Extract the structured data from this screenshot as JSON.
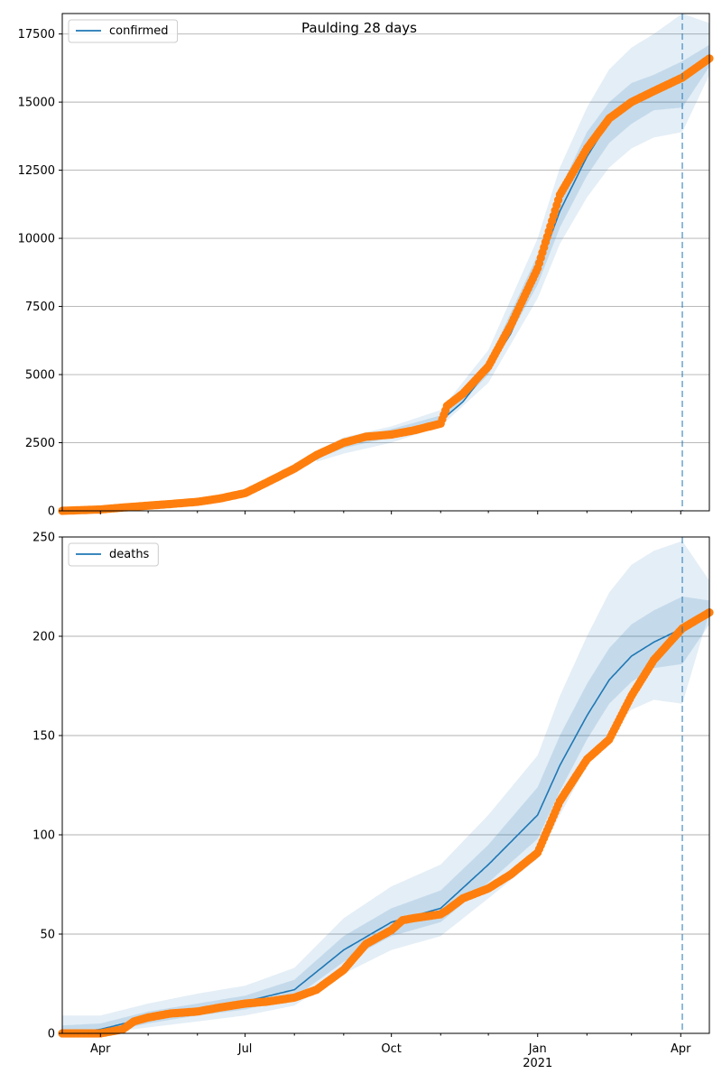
{
  "figure": {
    "title": "Paulding 28 days"
  },
  "chart_data": [
    {
      "type": "line",
      "panel": "top",
      "title": "Paulding 28 days",
      "legend": {
        "label": "confirmed",
        "placement": "top-left"
      },
      "grid": "horizontal",
      "x_axis": {
        "type": "date",
        "range": [
          "2020-03-08",
          "2021-04-19"
        ],
        "tick_labels": []
      },
      "y_axis": {
        "range": [
          0,
          18250
        ],
        "ticks": [
          0,
          2500,
          5000,
          7500,
          10000,
          12500,
          15000,
          17500
        ],
        "tick_labels": [
          "0",
          "2500",
          "5000",
          "7500",
          "10000",
          "12500",
          "15000",
          "17500"
        ]
      },
      "forecast_start": "2021-04-02",
      "model_line": {
        "dates": [
          "2020-03-08",
          "2020-04-01",
          "2020-05-01",
          "2020-06-01",
          "2020-07-01",
          "2020-08-01",
          "2020-09-01",
          "2020-10-01",
          "2020-11-01",
          "2020-11-15",
          "2020-12-01",
          "2020-12-15",
          "2021-01-01",
          "2021-01-15",
          "2021-02-01",
          "2021-02-15",
          "2021-03-01",
          "2021-03-15",
          "2021-04-02"
        ],
        "values": [
          0,
          50,
          150,
          300,
          600,
          1450,
          2450,
          2870,
          3300,
          4000,
          5200,
          6500,
          8800,
          11000,
          13000,
          14300,
          15000,
          15300,
          15800
        ]
      },
      "bands": [
        {
          "label": "outer",
          "dates": [
            "2020-08-15",
            "2020-09-01",
            "2020-10-01",
            "2020-11-01",
            "2020-12-01",
            "2021-01-01",
            "2021-01-15",
            "2021-02-01",
            "2021-02-15",
            "2021-03-01",
            "2021-03-15",
            "2021-04-02",
            "2021-04-19"
          ],
          "lower": [
            1800,
            2100,
            2500,
            3100,
            4700,
            7800,
            9800,
            11500,
            12600,
            13300,
            13700,
            13900,
            16000
          ],
          "upper": [
            2200,
            2700,
            3100,
            3700,
            5900,
            10000,
            12600,
            14800,
            16200,
            17000,
            17500,
            18250,
            17900
          ]
        },
        {
          "label": "inner",
          "dates": [
            "2020-08-15",
            "2020-09-01",
            "2020-10-01",
            "2020-11-01",
            "2020-12-01",
            "2021-01-01",
            "2021-01-15",
            "2021-02-01",
            "2021-02-15",
            "2021-03-01",
            "2021-03-15",
            "2021-04-02",
            "2021-04-19"
          ],
          "lower": [
            1900,
            2300,
            2700,
            3200,
            5000,
            8300,
            10400,
            12300,
            13500,
            14200,
            14700,
            14800,
            16300
          ],
          "upper": [
            2100,
            2600,
            3000,
            3500,
            5500,
            9400,
            11800,
            13900,
            15000,
            15700,
            16000,
            16500,
            17100
          ]
        }
      ],
      "observed": {
        "dates": [
          "2020-03-08",
          "2020-04-01",
          "2020-04-15",
          "2020-05-01",
          "2020-05-15",
          "2020-06-01",
          "2020-06-15",
          "2020-07-01",
          "2020-07-15",
          "2020-08-01",
          "2020-08-15",
          "2020-09-01",
          "2020-09-15",
          "2020-10-01",
          "2020-10-15",
          "2020-11-01",
          "2020-11-05",
          "2020-11-15",
          "2020-12-01",
          "2020-12-15",
          "2021-01-01",
          "2021-01-15",
          "2021-02-01",
          "2021-02-15",
          "2021-03-01",
          "2021-03-15",
          "2021-04-02",
          "2021-04-19"
        ],
        "values": [
          0,
          50,
          120,
          190,
          250,
          330,
          450,
          650,
          1050,
          1550,
          2050,
          2500,
          2720,
          2800,
          2950,
          3200,
          3850,
          4300,
          5300,
          6800,
          8900,
          11600,
          13300,
          14400,
          15000,
          15400,
          15900,
          16600
        ]
      },
      "series_colors": {
        "model": "#1f77b4",
        "observed": "#ff7f0e",
        "band": "#1f77b4"
      }
    },
    {
      "type": "line",
      "panel": "bottom",
      "title": "",
      "legend": {
        "label": "deaths",
        "placement": "top-left"
      },
      "grid": "horizontal",
      "x_axis": {
        "type": "date",
        "range": [
          "2020-03-08",
          "2021-04-19"
        ],
        "tick_labels": [
          "Apr",
          "Jul",
          "Oct",
          "Jan",
          "Apr"
        ],
        "tick_dates": [
          "2020-04-01",
          "2020-07-01",
          "2020-10-01",
          "2021-01-01",
          "2021-04-01"
        ],
        "secondary_label": "2021"
      },
      "y_axis": {
        "range": [
          0,
          250
        ],
        "ticks": [
          0,
          50,
          100,
          150,
          200,
          250
        ],
        "tick_labels": [
          "0",
          "50",
          "100",
          "150",
          "200",
          "250"
        ]
      },
      "forecast_start": "2021-04-02",
      "model_line": {
        "dates": [
          "2020-03-08",
          "2020-04-01",
          "2020-05-01",
          "2020-06-01",
          "2020-07-01",
          "2020-08-01",
          "2020-09-01",
          "2020-10-01",
          "2020-11-01",
          "2020-12-01",
          "2021-01-01",
          "2021-01-15",
          "2021-02-01",
          "2021-02-15",
          "2021-03-01",
          "2021-03-15",
          "2021-04-02"
        ],
        "values": [
          0,
          2,
          8,
          12,
          16,
          22,
          42,
          56,
          63,
          85,
          110,
          135,
          160,
          178,
          190,
          197,
          204
        ]
      },
      "bands": [
        {
          "label": "outer",
          "dates": [
            "2020-03-08",
            "2020-04-01",
            "2020-05-01",
            "2020-06-01",
            "2020-07-01",
            "2020-08-01",
            "2020-09-01",
            "2020-10-01",
            "2020-11-01",
            "2020-12-01",
            "2021-01-01",
            "2021-01-15",
            "2021-02-01",
            "2021-02-15",
            "2021-03-01",
            "2021-03-15",
            "2021-04-02",
            "2021-04-19"
          ],
          "lower": [
            0,
            0,
            3,
            6,
            9,
            14,
            30,
            42,
            49,
            68,
            88,
            110,
            135,
            152,
            163,
            168,
            166,
            212
          ],
          "upper": [
            9,
            9,
            15,
            20,
            24,
            33,
            58,
            74,
            85,
            110,
            140,
            170,
            200,
            222,
            236,
            243,
            248,
            228
          ]
        },
        {
          "label": "inner",
          "dates": [
            "2020-03-08",
            "2020-04-01",
            "2020-05-01",
            "2020-06-01",
            "2020-07-01",
            "2020-08-01",
            "2020-09-01",
            "2020-10-01",
            "2020-11-01",
            "2020-12-01",
            "2021-01-01",
            "2021-01-15",
            "2021-02-01",
            "2021-02-15",
            "2021-03-01",
            "2021-03-15",
            "2021-04-02",
            "2021-04-19"
          ],
          "lower": [
            0,
            0,
            5,
            9,
            12,
            18,
            36,
            49,
            56,
            76,
            98,
            122,
            148,
            166,
            177,
            184,
            186,
            206
          ],
          "upper": [
            4,
            5,
            11,
            15,
            19,
            27,
            49,
            63,
            72,
            95,
            124,
            150,
            176,
            194,
            206,
            213,
            220,
            218
          ]
        }
      ],
      "observed": {
        "dates": [
          "2020-03-08",
          "2020-04-01",
          "2020-04-15",
          "2020-04-22",
          "2020-05-01",
          "2020-05-15",
          "2020-06-01",
          "2020-06-15",
          "2020-07-01",
          "2020-07-15",
          "2020-08-01",
          "2020-08-15",
          "2020-09-01",
          "2020-09-15",
          "2020-10-01",
          "2020-10-08",
          "2020-10-15",
          "2020-11-01",
          "2020-11-05",
          "2020-11-15",
          "2020-12-01",
          "2020-12-15",
          "2021-01-01",
          "2021-01-08",
          "2021-01-15",
          "2021-02-01",
          "2021-02-15",
          "2021-03-01",
          "2021-03-15",
          "2021-04-02",
          "2021-04-19"
        ],
        "values": [
          0,
          0,
          2,
          6,
          8,
          10,
          11,
          13,
          15,
          16,
          18,
          22,
          32,
          45,
          52,
          57,
          58,
          60,
          62,
          68,
          73,
          80,
          91,
          104,
          117,
          138,
          148,
          170,
          188,
          204,
          212
        ]
      },
      "series_colors": {
        "model": "#1f77b4",
        "observed": "#ff7f0e",
        "band": "#1f77b4"
      }
    }
  ]
}
